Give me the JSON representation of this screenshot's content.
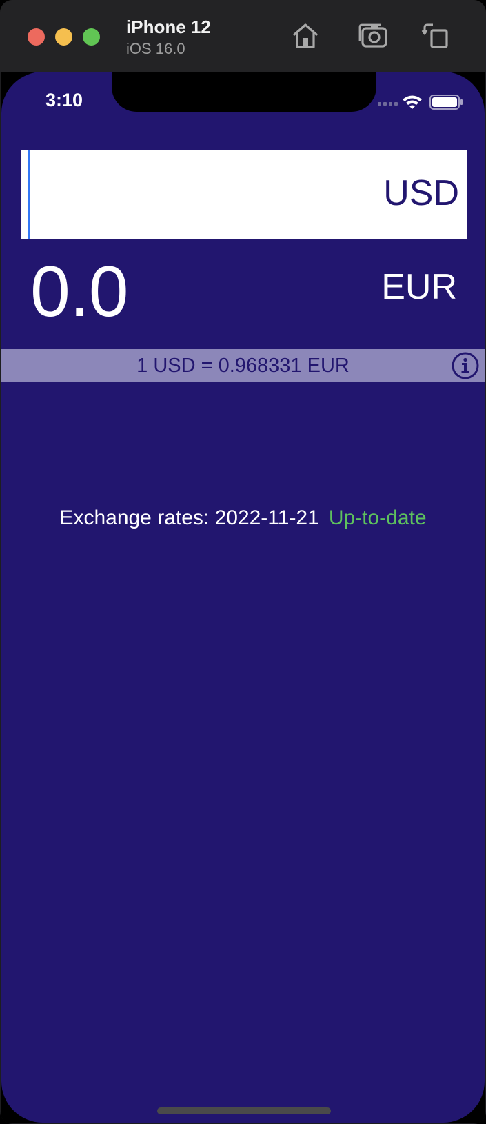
{
  "simulator": {
    "device_name": "iPhone 12",
    "os_version": "iOS 16.0",
    "toolbar_icons": [
      "home-icon",
      "screenshot-icon",
      "rotate-icon"
    ]
  },
  "status_bar": {
    "time": "3:10",
    "icons": [
      "signal-icon",
      "wifi-icon",
      "battery-icon"
    ]
  },
  "converter": {
    "input_value": "",
    "input_currency": "USD",
    "result_amount": "0.0",
    "result_currency": "EUR",
    "rate_text": "1 USD = 0.968331 EUR",
    "exchange_label": "Exchange rates: 2022-11-21",
    "exchange_status": "Up-to-date"
  },
  "colors": {
    "background": "#22166f",
    "rate_bar": "#8c87b9",
    "status_green": "#5ec15e",
    "caret": "#3478f6"
  }
}
